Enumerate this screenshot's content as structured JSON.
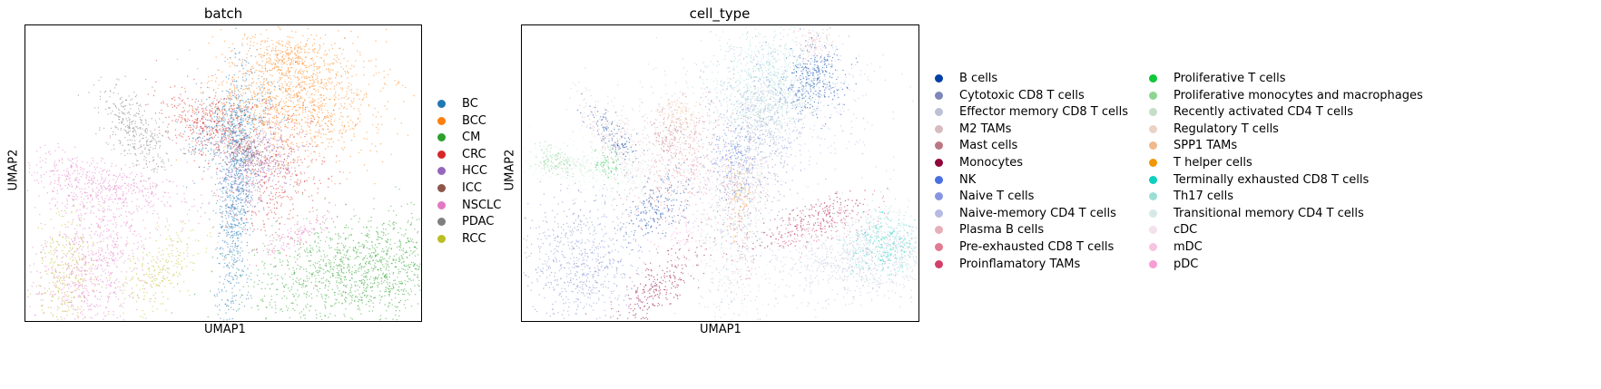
{
  "chart_data": [
    {
      "type": "scatter",
      "title": "batch",
      "xlabel": "UMAP1",
      "ylabel": "UMAP2",
      "legend_placement": "right",
      "grid": false,
      "ticks": false,
      "series": [
        {
          "name": "BC",
          "color": "#1f77b4"
        },
        {
          "name": "BCC",
          "color": "#ff7f0e"
        },
        {
          "name": "CM",
          "color": "#2ca02c"
        },
        {
          "name": "CRC",
          "color": "#d62728"
        },
        {
          "name": "HCC",
          "color": "#9467bd"
        },
        {
          "name": "ICC",
          "color": "#8c564b"
        },
        {
          "name": "NSCLC",
          "color": "#e377c2"
        },
        {
          "name": "PDAC",
          "color": "#7f7f7f"
        },
        {
          "name": "RCC",
          "color": "#bcbd22"
        }
      ]
    },
    {
      "type": "scatter",
      "title": "cell_type",
      "xlabel": "UMAP1",
      "ylabel": "UMAP2",
      "legend_placement": "right",
      "grid": false,
      "ticks": false,
      "series": [
        {
          "name": "B cells",
          "color": "#023fa5"
        },
        {
          "name": "Cytotoxic CD8 T cells",
          "color": "#7d87b9"
        },
        {
          "name": "Effector memory CD8 T cells",
          "color": "#bec1d4"
        },
        {
          "name": "M2 TAMs",
          "color": "#d6bcc0"
        },
        {
          "name": "Mast cells",
          "color": "#bb7784"
        },
        {
          "name": "Monocytes",
          "color": "#8e063b"
        },
        {
          "name": "NK",
          "color": "#4a6fe3"
        },
        {
          "name": "Naive T cells",
          "color": "#8595e1"
        },
        {
          "name": "Naive-memory CD4 T cells",
          "color": "#b5bbe3"
        },
        {
          "name": "Plasma B cells",
          "color": "#e6afb9"
        },
        {
          "name": "Pre-exhausted CD8 T cells",
          "color": "#e07b91"
        },
        {
          "name": "Proinflamatory TAMs",
          "color": "#d33f6a"
        },
        {
          "name": "Proliferative T cells",
          "color": "#11c638"
        },
        {
          "name": "Proliferative monocytes and macrophages",
          "color": "#8dd593"
        },
        {
          "name": "Recently activated CD4 T cells",
          "color": "#c6dec7"
        },
        {
          "name": "Regulatory T cells",
          "color": "#ead3c6"
        },
        {
          "name": "SPP1 TAMs",
          "color": "#f0b98d"
        },
        {
          "name": "T helper cells",
          "color": "#ef9708"
        },
        {
          "name": "Terminally exhausted CD8 T cells",
          "color": "#0fcfc0"
        },
        {
          "name": "Th17 cells",
          "color": "#9cded6"
        },
        {
          "name": "Transitional memory CD4 T cells",
          "color": "#d5eae7"
        },
        {
          "name": "cDC",
          "color": "#f3e1eb"
        },
        {
          "name": "mDC",
          "color": "#f6c4e1"
        },
        {
          "name": "pDC",
          "color": "#f79cd4"
        }
      ]
    }
  ]
}
